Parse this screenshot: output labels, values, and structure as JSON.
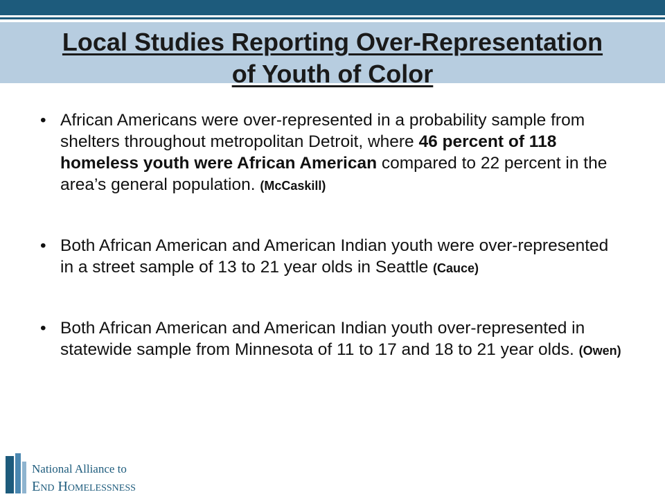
{
  "header": {
    "title_lines": [
      "Local Studies Reporting Over-Representation",
      "of Youth of Color"
    ]
  },
  "bullets": [
    {
      "runs": [
        {
          "text": "African Americans were over-represented in a probability sample from shelters throughout metropolitan Detroit, where ",
          "bold": false
        },
        {
          "text": "46 percent of 118 homeless youth were African American",
          "bold": true
        },
        {
          "text": " compared to 22 percent in the area’s general population. ",
          "bold": false
        }
      ],
      "citation": "(McCaskill)"
    },
    {
      "runs": [
        {
          "text": "Both African American and American Indian youth were over-represented in a street sample of 13 to 21 year olds in Seattle ",
          "bold": false
        }
      ],
      "citation": "(Cauce)"
    },
    {
      "runs": [
        {
          "text": "Both African American and American Indian youth over-represented in statewide sample from Minnesota of 11 to 17 and 18 to 21 year olds. ",
          "bold": false
        }
      ],
      "citation": "(Owen)"
    }
  ],
  "logo": {
    "line1": "National Alliance to",
    "line2": "End Homelessness"
  }
}
